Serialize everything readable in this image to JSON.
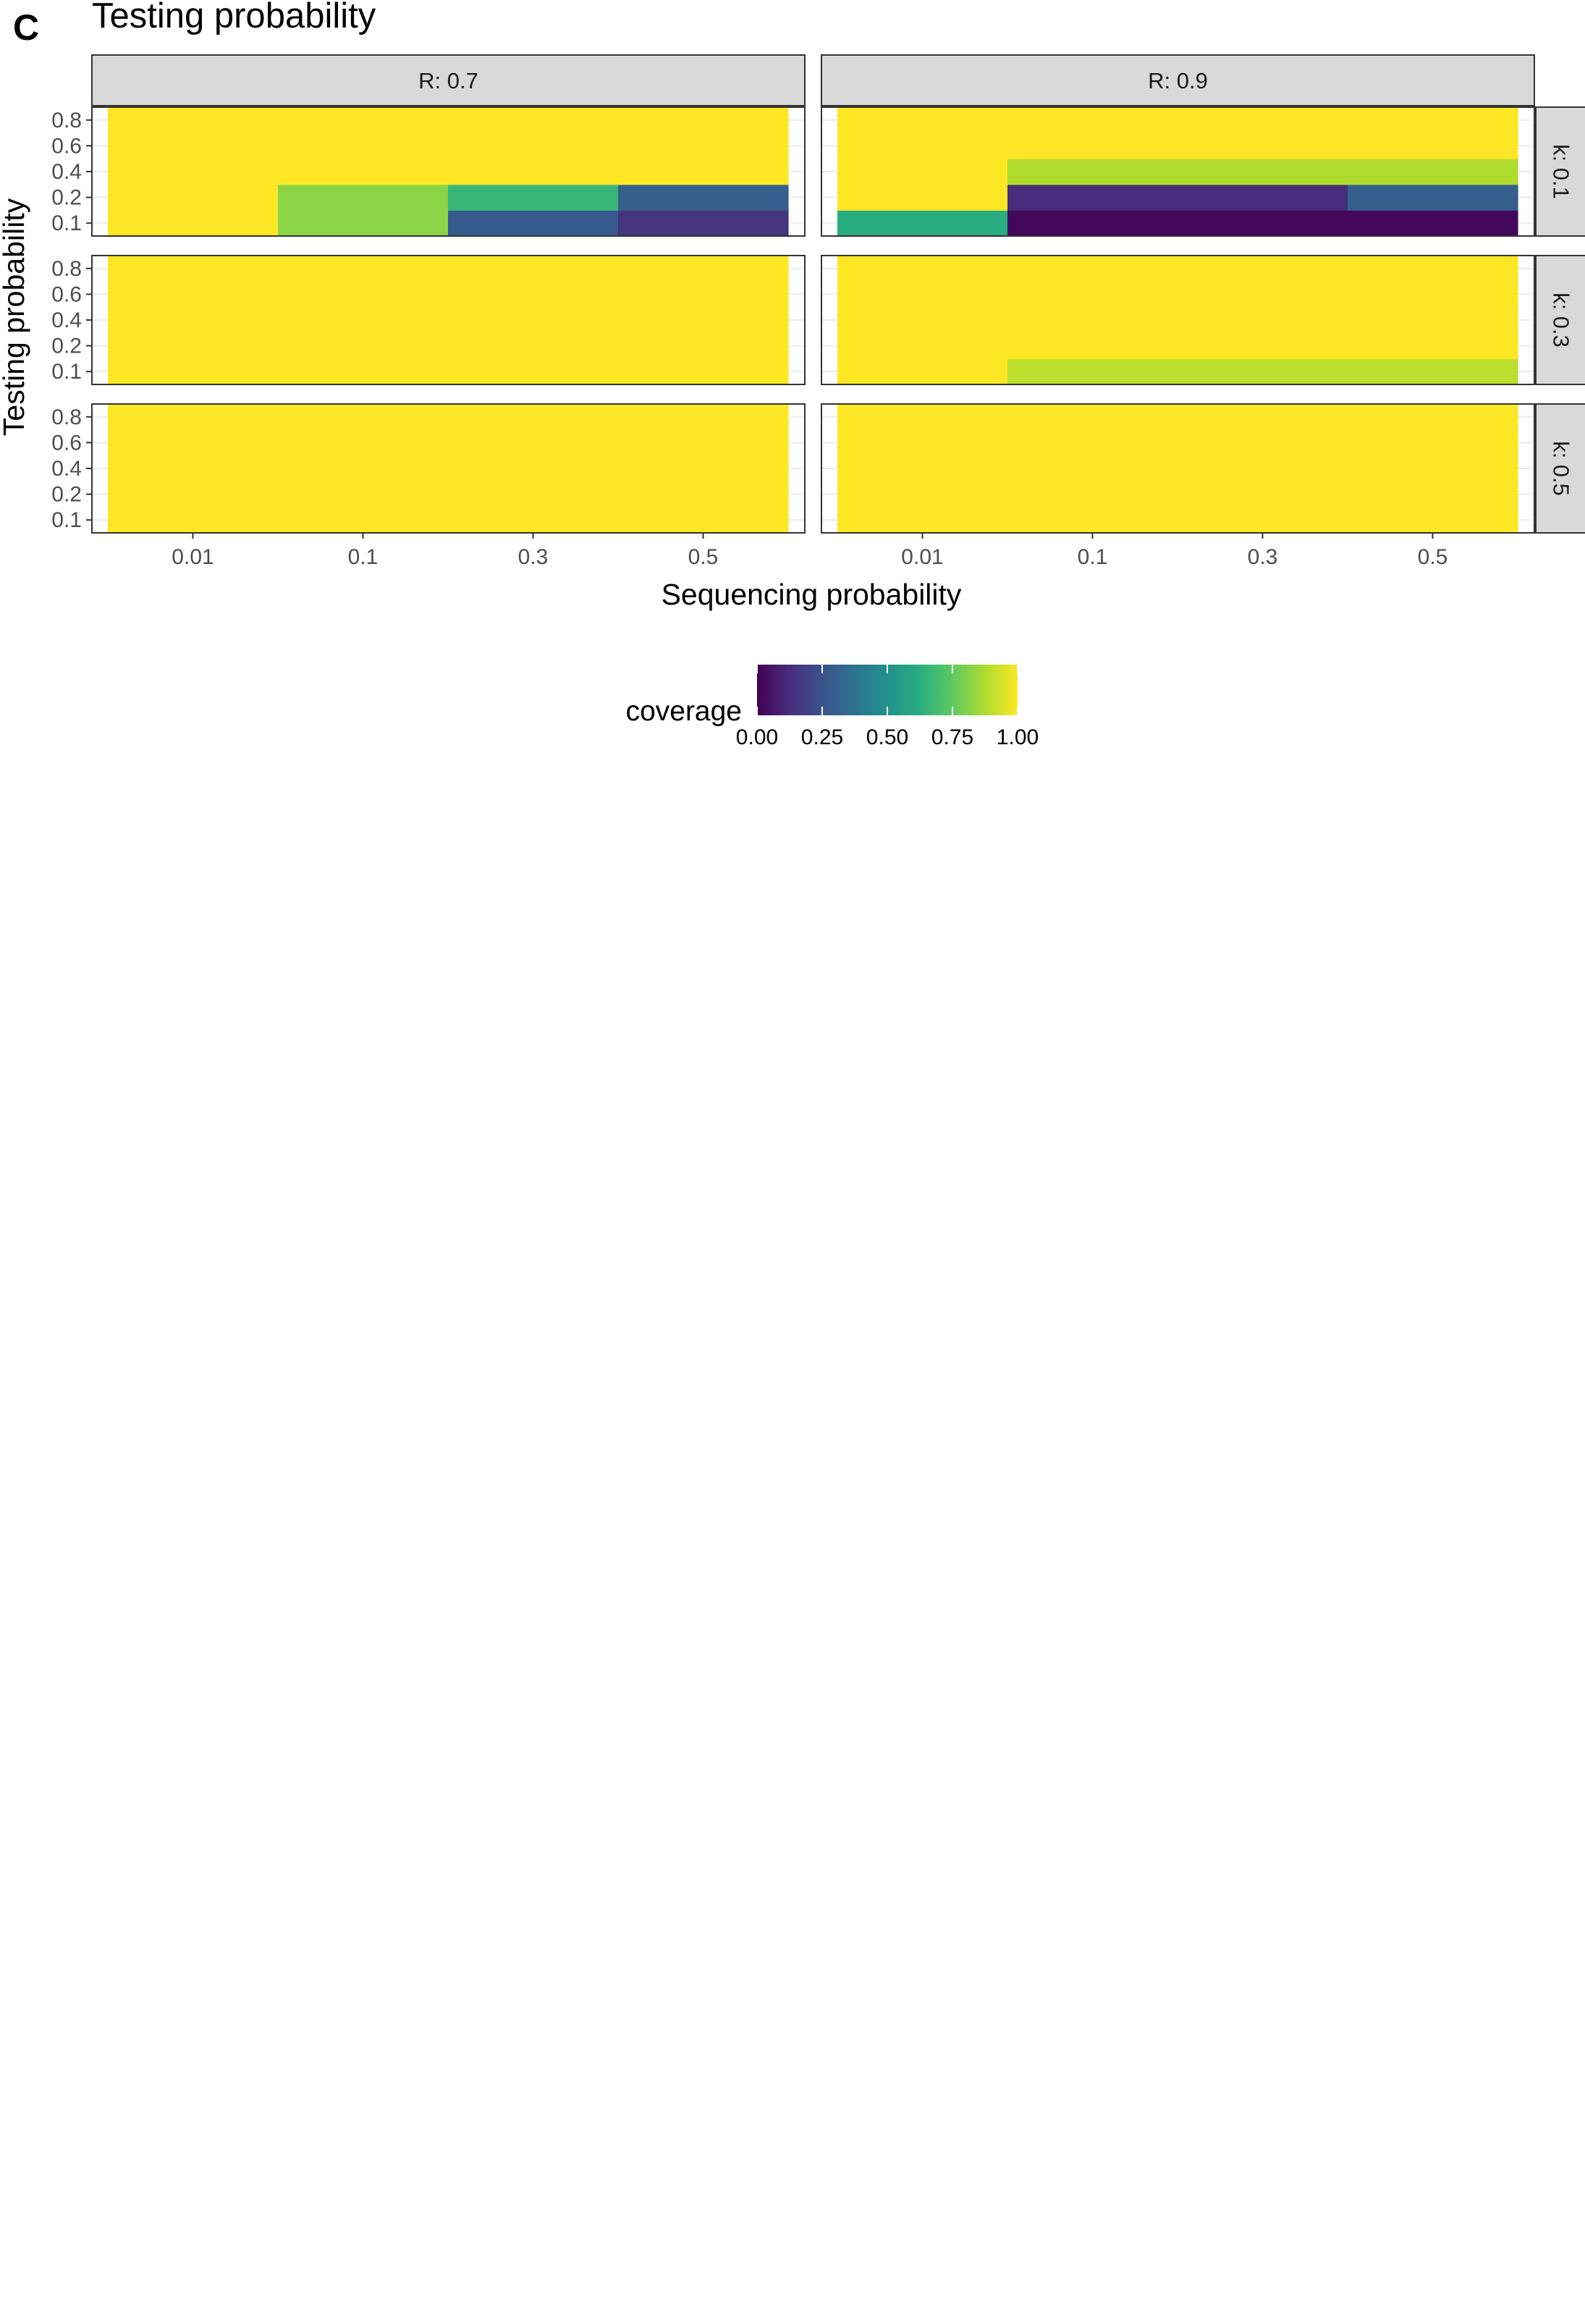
{
  "panel_tag": "C",
  "chart_data": {
    "type": "heatmap",
    "title": "Testing probability",
    "xlabel": "Sequencing probability",
    "ylabel": "Testing probability",
    "x_categories": [
      "0.01",
      "0.1",
      "0.3",
      "0.5"
    ],
    "y_categories": [
      "0.1",
      "0.2",
      "0.4",
      "0.6",
      "0.8"
    ],
    "facet_columns": [
      "R: 0.7",
      "R: 0.9"
    ],
    "facet_rows": [
      "k: 0.1",
      "k: 0.3",
      "k: 0.5"
    ],
    "color_scale": {
      "name": "viridis",
      "stops": [
        "#440154",
        "#472d7b",
        "#3b528b",
        "#2c728e",
        "#21918c",
        "#28ae80",
        "#5ec962",
        "#addc30",
        "#fde725"
      ],
      "range": [
        0,
        1
      ]
    },
    "legend": {
      "title": "coverage",
      "position": "bottom",
      "breaks": [
        "0.00",
        "0.25",
        "0.50",
        "0.75",
        "1.00"
      ]
    },
    "panels": [
      {
        "column": "R: 0.7",
        "row": "k: 0.1",
        "values": [
          [
            1.0,
            0.82,
            0.28,
            0.15
          ],
          [
            1.0,
            0.82,
            0.66,
            0.3
          ],
          [
            1.0,
            1.0,
            1.0,
            1.0
          ],
          [
            1.0,
            1.0,
            1.0,
            1.0
          ],
          [
            1.0,
            1.0,
            1.0,
            1.0
          ]
        ]
      },
      {
        "column": "R: 0.9",
        "row": "k: 0.1",
        "values": [
          [
            0.62,
            0.02,
            0.02,
            0.02
          ],
          [
            1.0,
            0.13,
            0.13,
            0.3
          ],
          [
            1.0,
            0.88,
            0.88,
            0.88
          ],
          [
            1.0,
            1.0,
            1.0,
            1.0
          ],
          [
            1.0,
            1.0,
            1.0,
            1.0
          ]
        ]
      },
      {
        "column": "R: 0.7",
        "row": "k: 0.3",
        "values": [
          [
            1.0,
            1.0,
            1.0,
            1.0
          ],
          [
            1.0,
            1.0,
            1.0,
            1.0
          ],
          [
            1.0,
            1.0,
            1.0,
            1.0
          ],
          [
            1.0,
            1.0,
            1.0,
            1.0
          ],
          [
            1.0,
            1.0,
            1.0,
            1.0
          ]
        ]
      },
      {
        "column": "R: 0.9",
        "row": "k: 0.3",
        "values": [
          [
            1.0,
            0.9,
            0.9,
            0.9
          ],
          [
            1.0,
            1.0,
            1.0,
            1.0
          ],
          [
            1.0,
            1.0,
            1.0,
            1.0
          ],
          [
            1.0,
            1.0,
            1.0,
            1.0
          ],
          [
            1.0,
            1.0,
            1.0,
            1.0
          ]
        ]
      },
      {
        "column": "R: 0.7",
        "row": "k: 0.5",
        "values": [
          [
            1.0,
            1.0,
            1.0,
            1.0
          ],
          [
            1.0,
            1.0,
            1.0,
            1.0
          ],
          [
            1.0,
            1.0,
            1.0,
            1.0
          ],
          [
            1.0,
            1.0,
            1.0,
            1.0
          ],
          [
            1.0,
            1.0,
            1.0,
            1.0
          ]
        ]
      },
      {
        "column": "R: 0.9",
        "row": "k: 0.5",
        "values": [
          [
            1.0,
            1.0,
            1.0,
            1.0
          ],
          [
            1.0,
            1.0,
            1.0,
            1.0
          ],
          [
            1.0,
            1.0,
            1.0,
            1.0
          ],
          [
            1.0,
            1.0,
            1.0,
            1.0
          ],
          [
            1.0,
            1.0,
            1.0,
            1.0
          ]
        ]
      }
    ]
  }
}
